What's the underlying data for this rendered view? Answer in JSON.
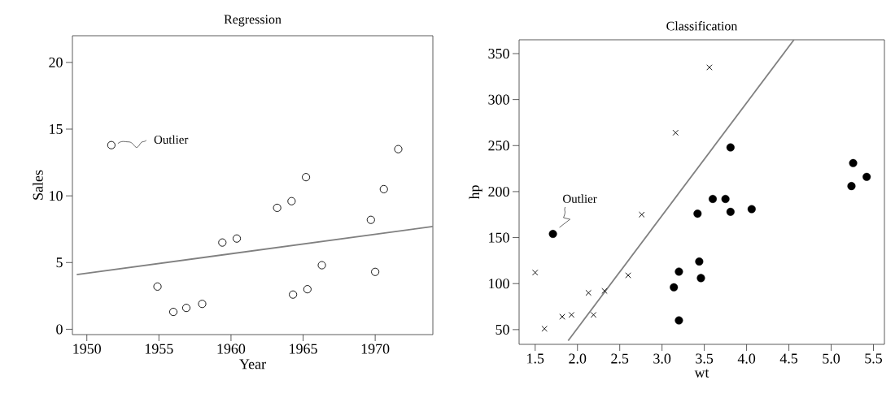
{
  "chart_data": [
    {
      "type": "scatter",
      "title": "Regression",
      "xlabel": "Year",
      "ylabel": "Sales",
      "marker": "circle",
      "xlim": [
        1949,
        1974
      ],
      "ylim": [
        -0.4,
        22
      ],
      "xticks": [
        1950,
        1955,
        1960,
        1965,
        1970
      ],
      "yticks": [
        0,
        5,
        10,
        15,
        20
      ],
      "series": [
        {
          "color": "#000000",
          "x": [
            1951.7,
            1954.9,
            1956.0,
            1956.9,
            1958.0,
            1959.4,
            1960.4,
            1963.2,
            1964.2,
            1965.2,
            1964.3,
            1965.3,
            1966.3,
            1969.7,
            1970.0,
            1970.6,
            1971.6
          ],
          "values": [
            13.8,
            3.2,
            1.3,
            1.6,
            1.9,
            6.5,
            6.8,
            9.1,
            9.6,
            11.4,
            2.6,
            3.0,
            4.8,
            8.2,
            4.3,
            10.5,
            13.5
          ]
        },
        {
          "type": "line",
          "color": "#808080",
          "marker": "none",
          "x": [
            1949.3,
            1974
          ],
          "values": [
            4.1,
            7.7
          ]
        }
      ],
      "annotations": [
        {
          "text": "Outlier",
          "x": 1951.7,
          "y": 13.8
        }
      ]
    },
    {
      "type": "scatter",
      "title": "Classification",
      "xlabel": "wt",
      "ylabel": "hp",
      "xlim": [
        1.31,
        5.63
      ],
      "ylim": [
        34,
        365
      ],
      "xticks": [
        1.5,
        {
          "value": 2,
          "label": "2.0"
        },
        2.5,
        {
          "value": 3,
          "label": "3.0"
        },
        3.5,
        {
          "value": 4,
          "label": "4.0"
        },
        4.5,
        {
          "value": 5,
          "label": "5.0"
        },
        5.5
      ],
      "yticks": [
        50,
        100,
        150,
        200,
        250,
        300,
        350
      ],
      "series": [
        {
          "color": "#000000",
          "marker": "cross",
          "x": [
            1.5,
            1.61,
            1.82,
            1.93,
            2.13,
            2.19,
            2.32,
            2.6,
            2.76,
            3.16,
            3.56
          ],
          "values": [
            112,
            51,
            64,
            66,
            90,
            66,
            92,
            109,
            175,
            264,
            335
          ]
        },
        {
          "color": "#000000",
          "marker": "circle",
          "x": [
            1.71,
            3.14,
            3.2,
            3.2,
            3.42,
            3.44,
            3.46,
            3.6,
            3.75,
            3.81,
            3.81,
            4.06,
            5.24,
            5.26,
            5.42
          ],
          "values": [
            154,
            96,
            113,
            60,
            176,
            124,
            106,
            192,
            192,
            178,
            248,
            181,
            206,
            231,
            216
          ]
        },
        {
          "type": "line",
          "color": "#808080",
          "marker": "none",
          "x": [
            1.89,
            4.56
          ],
          "values": [
            38,
            365
          ]
        }
      ],
      "annotations": [
        {
          "text": "Outlier",
          "x": 1.71,
          "y": 154
        }
      ]
    }
  ]
}
